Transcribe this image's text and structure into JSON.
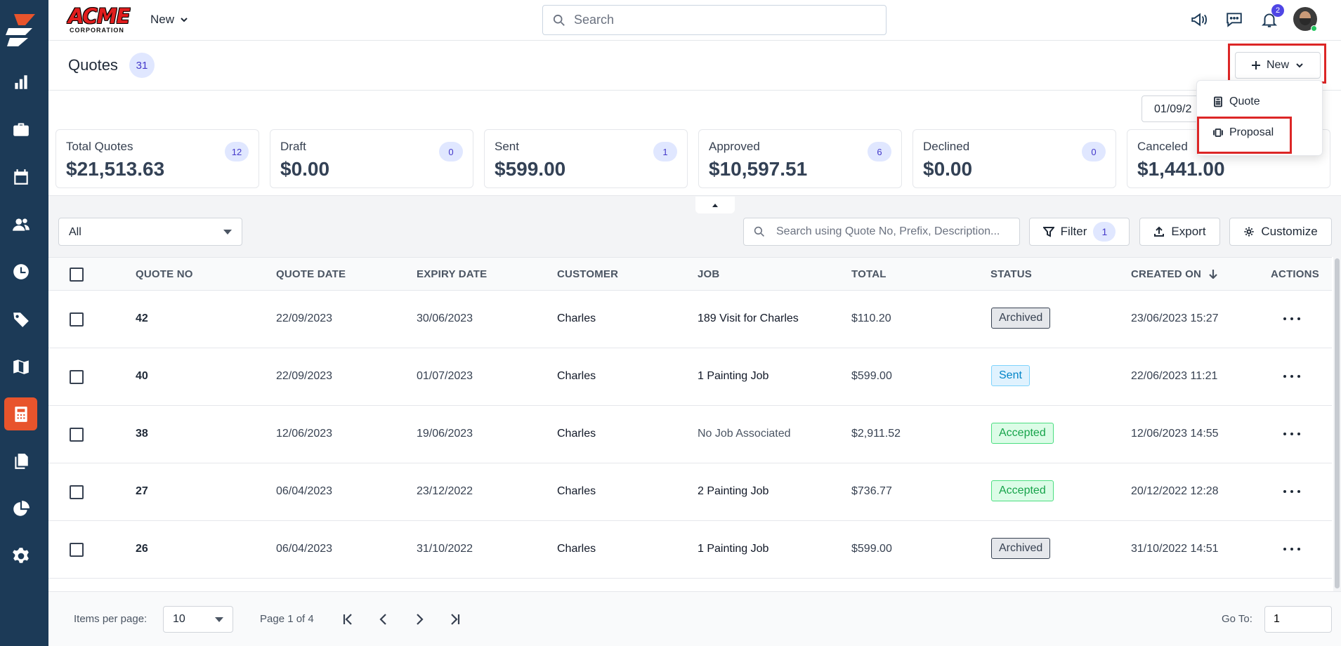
{
  "topbar": {
    "brand_main": "ACME",
    "brand_sub": "CORPORATION",
    "new_label": "New",
    "search_placeholder": "Search",
    "notification_count": "2"
  },
  "sidebar": {
    "items": [
      {
        "icon": "chart-icon"
      },
      {
        "icon": "briefcase-icon"
      },
      {
        "icon": "calendar-icon"
      },
      {
        "icon": "users-icon"
      },
      {
        "icon": "clock-icon"
      },
      {
        "icon": "tag-icon"
      },
      {
        "icon": "map-icon"
      },
      {
        "icon": "calculator-icon",
        "active": true
      },
      {
        "icon": "documents-icon"
      },
      {
        "icon": "pie-chart-icon"
      },
      {
        "icon": "gear-icon"
      }
    ],
    "active_color": "#e8542c",
    "bg_color": "#1c3a57"
  },
  "header": {
    "title": "Quotes",
    "count": "31",
    "new_button": "New",
    "date_range": "01/09/2"
  },
  "dropdown": {
    "items": [
      "Quote",
      "Proposal"
    ]
  },
  "cards": [
    {
      "label": "Total Quotes",
      "value": "$21,513.63",
      "count": "12"
    },
    {
      "label": "Draft",
      "value": "$0.00",
      "count": "0"
    },
    {
      "label": "Sent",
      "value": "$599.00",
      "count": "1"
    },
    {
      "label": "Approved",
      "value": "$10,597.51",
      "count": "6"
    },
    {
      "label": "Declined",
      "value": "$0.00",
      "count": "0"
    },
    {
      "label": "Canceled",
      "value": "$1,441.00",
      "count": ""
    }
  ],
  "toolbar": {
    "filter_select": "All",
    "search_placeholder": "Search using Quote No, Prefix, Description...",
    "filter_label": "Filter",
    "filter_count": "1",
    "export_label": "Export",
    "customize_label": "Customize"
  },
  "table": {
    "headers": [
      "QUOTE NO",
      "QUOTE DATE",
      "EXPIRY DATE",
      "CUSTOMER",
      "JOB",
      "TOTAL",
      "STATUS",
      "CREATED ON",
      "ACTIONS"
    ],
    "rows": [
      {
        "no": "42",
        "quote_date": "22/09/2023",
        "expiry": "30/06/2023",
        "customer": "Charles",
        "job": "189 Visit for Charles",
        "total": "$110.20",
        "status": "Archived",
        "created": "23/06/2023 15:27"
      },
      {
        "no": "40",
        "quote_date": "22/09/2023",
        "expiry": "01/07/2023",
        "customer": "Charles",
        "job": "1 Painting Job",
        "total": "$599.00",
        "status": "Sent",
        "created": "22/06/2023 11:21"
      },
      {
        "no": "38",
        "quote_date": "12/06/2023",
        "expiry": "19/06/2023",
        "customer": "Charles",
        "job": "No Job Associated",
        "total": "$2,911.52",
        "status": "Accepted",
        "created": "12/06/2023 14:55"
      },
      {
        "no": "27",
        "quote_date": "06/04/2023",
        "expiry": "23/12/2022",
        "customer": "Charles",
        "job": "2 Painting Job",
        "total": "$736.77",
        "status": "Accepted",
        "created": "20/12/2022 12:28"
      },
      {
        "no": "26",
        "quote_date": "06/04/2023",
        "expiry": "31/10/2022",
        "customer": "Charles",
        "job": "1 Painting Job",
        "total": "$599.00",
        "status": "Archived",
        "created": "31/10/2022 14:51"
      }
    ]
  },
  "footer": {
    "items_per_page_label": "Items per page:",
    "items_per_page": "10",
    "page_info": "Page 1 of 4",
    "goto_label": "Go To:",
    "goto_value": "1"
  }
}
